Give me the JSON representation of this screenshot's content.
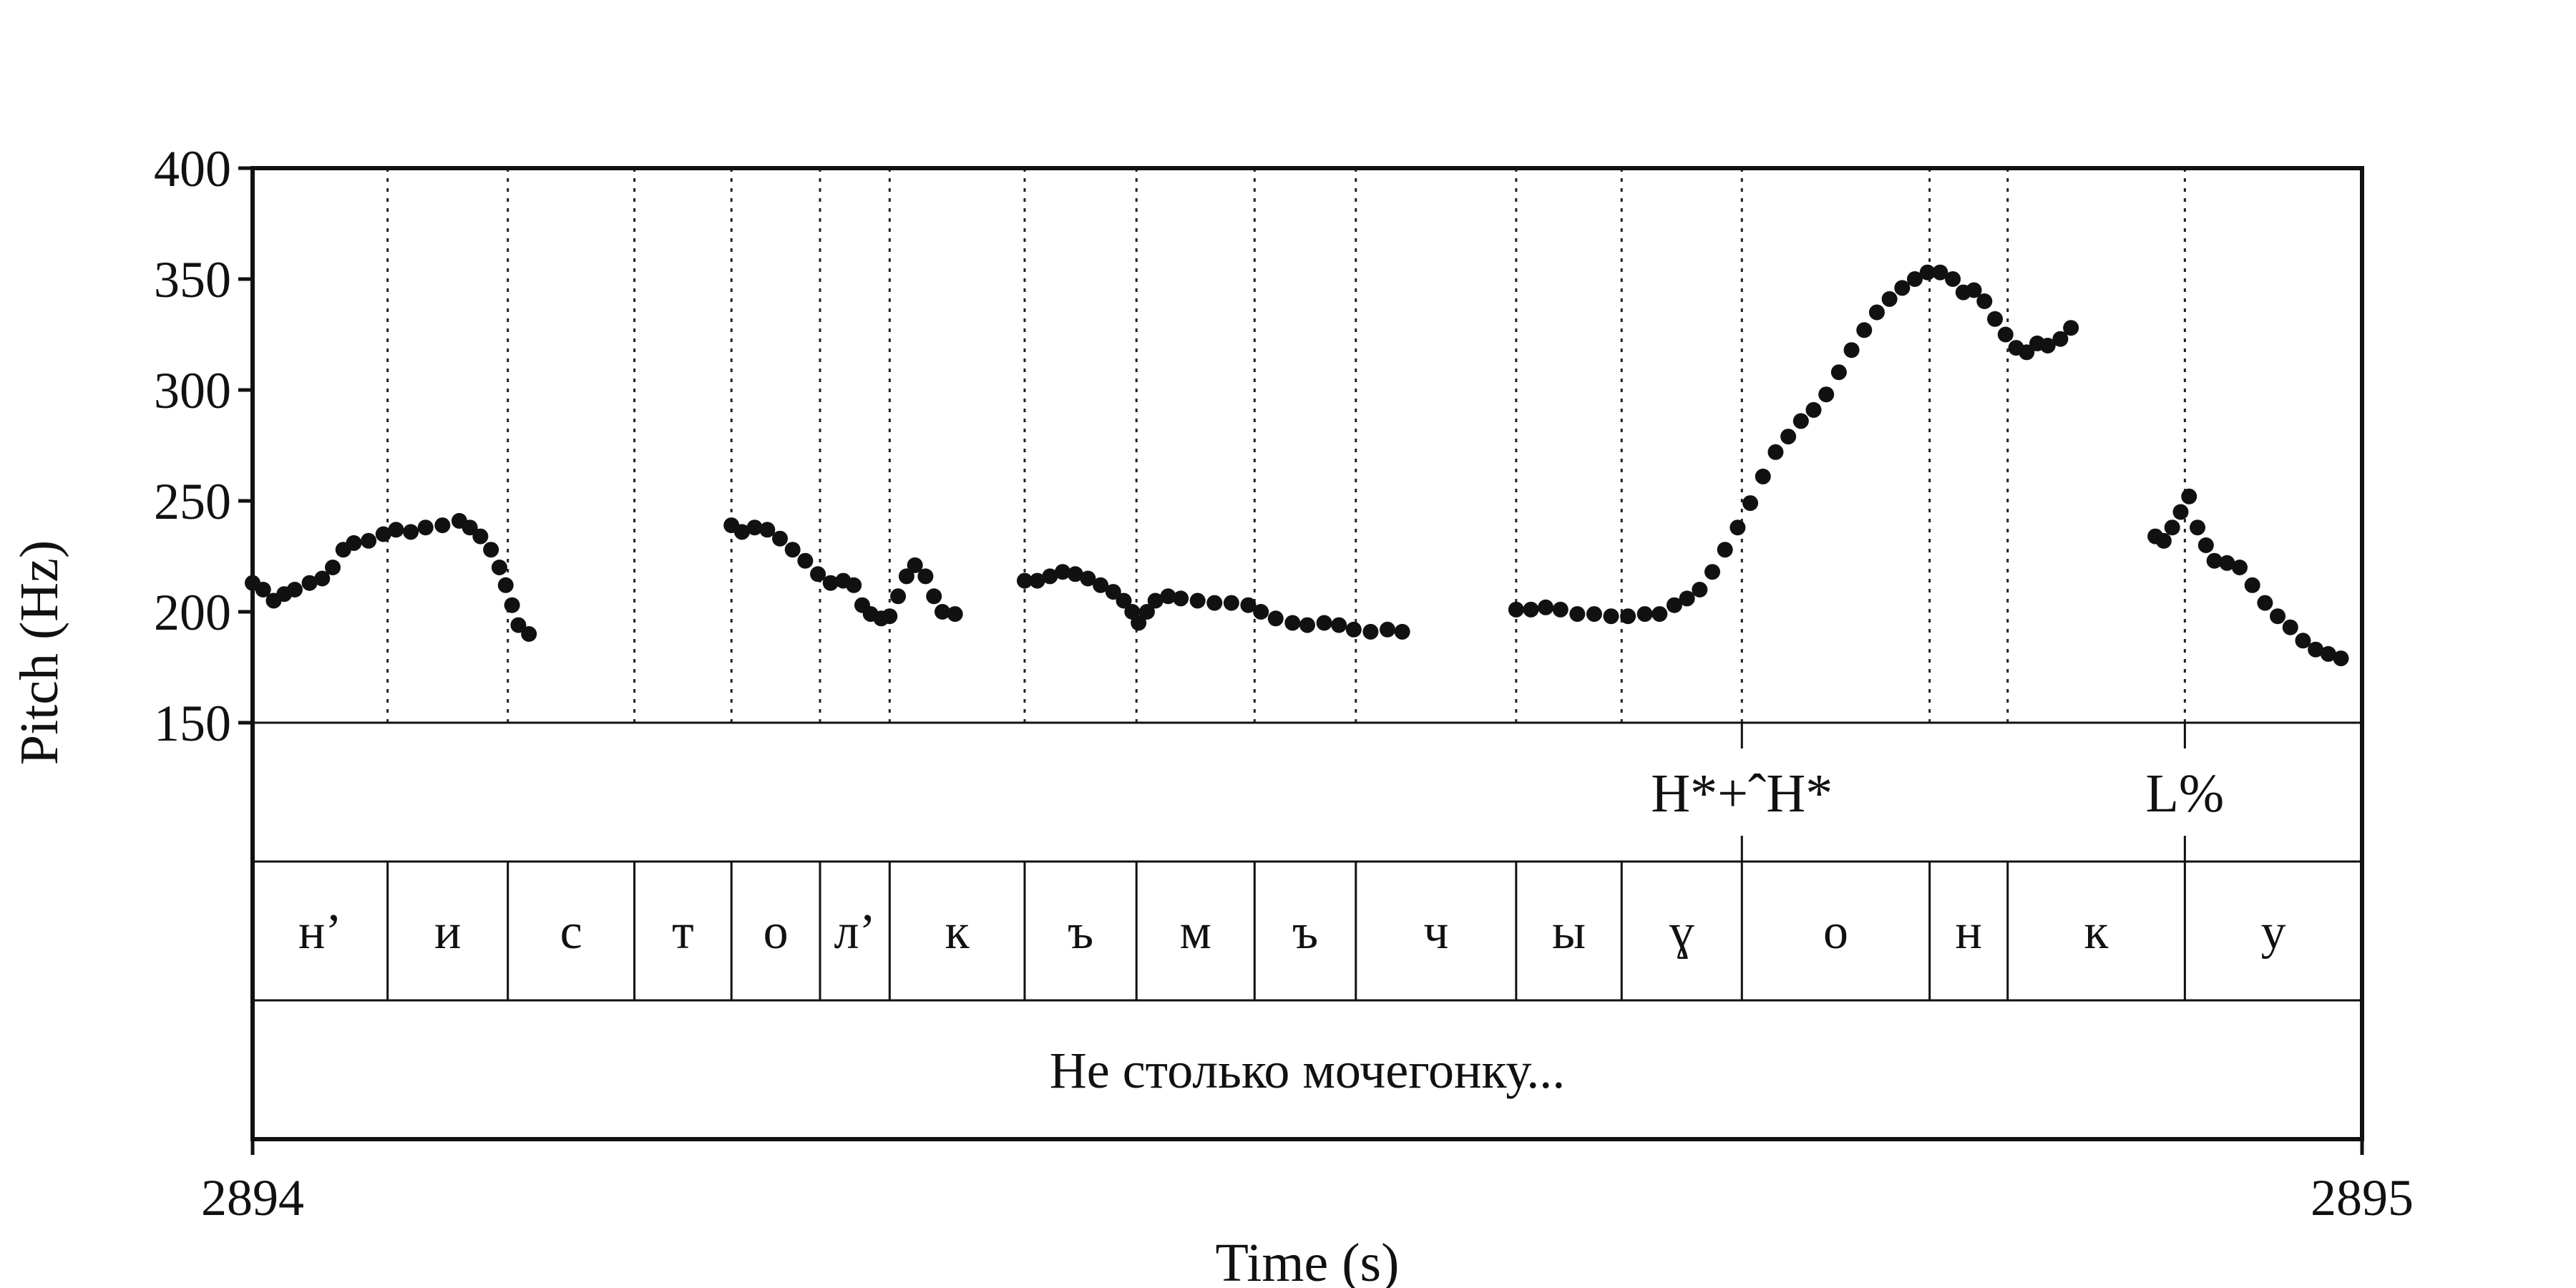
{
  "chart_data": {
    "type": "scatter",
    "xlabel": "Time (s)",
    "ylabel": "Pitch (Hz)",
    "xlim": [
      2894,
      2895
    ],
    "ylim": [
      150,
      400
    ],
    "x_ticks": [
      "2894",
      "2895"
    ],
    "y_ticks": [
      "150",
      "200",
      "250",
      "300",
      "350",
      "400"
    ],
    "segment_boundaries": [
      2894.0,
      2894.064,
      2894.121,
      2894.181,
      2894.227,
      2894.269,
      2894.302,
      2894.366,
      2894.419,
      2894.475,
      2894.523,
      2894.599,
      2894.649,
      2894.706,
      2894.795,
      2894.832,
      2894.916,
      2895.0
    ],
    "segments": [
      "н’",
      "и",
      "с",
      "т",
      "о",
      "л’",
      "к",
      "ъ",
      "м",
      "ъ",
      "ч",
      "ы",
      "ɣ",
      "о",
      "н",
      "к",
      "у"
    ],
    "tones": [
      {
        "time": 2894.706,
        "label": "H*+ˆH*"
      },
      {
        "time": 2894.916,
        "label": "L%"
      }
    ],
    "words": [
      {
        "start": 2894.0,
        "end": 2895.0,
        "label": "Не столько мочегонку..."
      }
    ],
    "series": [
      {
        "points": [
          [
            2894.0,
            213
          ],
          [
            2894.005,
            210
          ],
          [
            2894.01,
            205
          ],
          [
            2894.015,
            208
          ],
          [
            2894.02,
            210
          ],
          [
            2894.027,
            213
          ],
          [
            2894.033,
            215
          ],
          [
            2894.038,
            220
          ],
          [
            2894.043,
            228
          ],
          [
            2894.048,
            231
          ],
          [
            2894.055,
            232
          ],
          [
            2894.062,
            235
          ],
          [
            2894.068,
            237
          ],
          [
            2894.075,
            236
          ],
          [
            2894.082,
            238
          ],
          [
            2894.09,
            239
          ],
          [
            2894.098,
            241
          ],
          [
            2894.103,
            238
          ],
          [
            2894.108,
            234
          ],
          [
            2894.113,
            228
          ],
          [
            2894.117,
            220
          ],
          [
            2894.12,
            212
          ],
          [
            2894.123,
            203
          ],
          [
            2894.126,
            194
          ],
          [
            2894.131,
            190
          ],
          [
            2894.227,
            239
          ],
          [
            2894.232,
            236
          ],
          [
            2894.238,
            238
          ],
          [
            2894.244,
            237
          ],
          [
            2894.25,
            233
          ],
          [
            2894.256,
            228
          ],
          [
            2894.262,
            223
          ],
          [
            2894.268,
            217
          ],
          [
            2894.274,
            213
          ],
          [
            2894.28,
            214
          ],
          [
            2894.285,
            212
          ],
          [
            2894.289,
            203
          ],
          [
            2894.293,
            199
          ],
          [
            2894.298,
            197
          ],
          [
            2894.302,
            198
          ],
          [
            2894.306,
            207
          ],
          [
            2894.31,
            216
          ],
          [
            2894.314,
            221
          ],
          [
            2894.319,
            216
          ],
          [
            2894.323,
            207
          ],
          [
            2894.327,
            200
          ],
          [
            2894.333,
            199
          ],
          [
            2894.366,
            214
          ],
          [
            2894.372,
            214
          ],
          [
            2894.378,
            216
          ],
          [
            2894.384,
            218
          ],
          [
            2894.39,
            217
          ],
          [
            2894.396,
            215
          ],
          [
            2894.402,
            212
          ],
          [
            2894.408,
            209
          ],
          [
            2894.413,
            205
          ],
          [
            2894.417,
            200
          ],
          [
            2894.42,
            195
          ],
          [
            2894.424,
            200
          ],
          [
            2894.428,
            205
          ],
          [
            2894.434,
            207
          ],
          [
            2894.44,
            206
          ],
          [
            2894.448,
            205
          ],
          [
            2894.456,
            204
          ],
          [
            2894.464,
            204
          ],
          [
            2894.472,
            203
          ],
          [
            2894.478,
            200
          ],
          [
            2894.485,
            197
          ],
          [
            2894.493,
            195
          ],
          [
            2894.5,
            194
          ],
          [
            2894.508,
            195
          ],
          [
            2894.515,
            194
          ],
          [
            2894.522,
            192
          ],
          [
            2894.53,
            191
          ],
          [
            2894.538,
            192
          ],
          [
            2894.545,
            191
          ],
          [
            2894.599,
            201
          ],
          [
            2894.606,
            201
          ],
          [
            2894.613,
            202
          ],
          [
            2894.62,
            201
          ],
          [
            2894.628,
            199
          ],
          [
            2894.636,
            199
          ],
          [
            2894.644,
            198
          ],
          [
            2894.652,
            198
          ],
          [
            2894.66,
            199
          ],
          [
            2894.667,
            199
          ],
          [
            2894.674,
            203
          ],
          [
            2894.68,
            206
          ],
          [
            2894.686,
            210
          ],
          [
            2894.692,
            218
          ],
          [
            2894.698,
            228
          ],
          [
            2894.704,
            238
          ],
          [
            2894.71,
            249
          ],
          [
            2894.716,
            261
          ],
          [
            2894.722,
            272
          ],
          [
            2894.728,
            279
          ],
          [
            2894.734,
            286
          ],
          [
            2894.74,
            291
          ],
          [
            2894.746,
            298
          ],
          [
            2894.752,
            308
          ],
          [
            2894.758,
            318
          ],
          [
            2894.764,
            327
          ],
          [
            2894.77,
            335
          ],
          [
            2894.776,
            341
          ],
          [
            2894.782,
            346
          ],
          [
            2894.788,
            350
          ],
          [
            2894.794,
            353
          ],
          [
            2894.8,
            353
          ],
          [
            2894.806,
            350
          ],
          [
            2894.811,
            344
          ],
          [
            2894.816,
            345
          ],
          [
            2894.821,
            340
          ],
          [
            2894.826,
            332
          ],
          [
            2894.831,
            325
          ],
          [
            2894.836,
            319
          ],
          [
            2894.841,
            317
          ],
          [
            2894.846,
            321
          ],
          [
            2894.851,
            320
          ],
          [
            2894.857,
            323
          ],
          [
            2894.862,
            328
          ],
          [
            2894.902,
            234
          ],
          [
            2894.906,
            232
          ],
          [
            2894.91,
            238
          ],
          [
            2894.914,
            245
          ],
          [
            2894.918,
            252
          ],
          [
            2894.922,
            238
          ],
          [
            2894.926,
            230
          ],
          [
            2894.93,
            223
          ],
          [
            2894.936,
            222
          ],
          [
            2894.942,
            220
          ],
          [
            2894.948,
            212
          ],
          [
            2894.954,
            204
          ],
          [
            2894.96,
            198
          ],
          [
            2894.966,
            193
          ],
          [
            2894.972,
            187
          ],
          [
            2894.978,
            183
          ],
          [
            2894.984,
            181
          ],
          [
            2894.99,
            179
          ]
        ]
      }
    ]
  }
}
